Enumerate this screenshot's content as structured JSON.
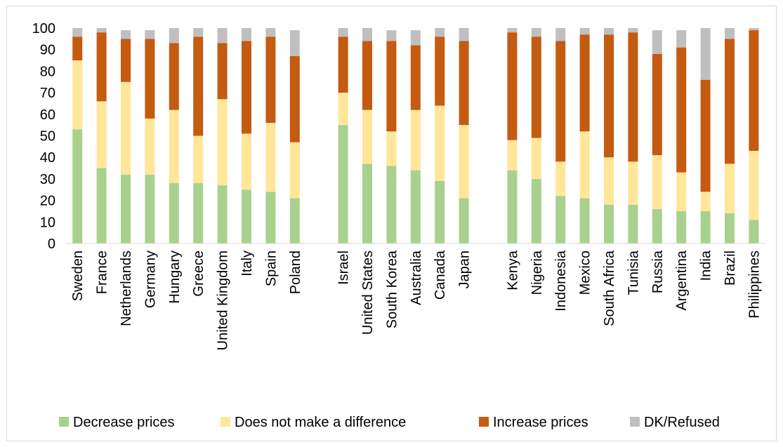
{
  "chart_data": {
    "type": "bar",
    "stacked": true,
    "ylim": [
      0,
      100
    ],
    "yticks": [
      0,
      10,
      20,
      30,
      40,
      50,
      60,
      70,
      80,
      90,
      100
    ],
    "grid": false,
    "legend_position": "bottom",
    "groups": [
      [
        "Sweden",
        "France",
        "Netherlands",
        "Germany",
        "Hungary",
        "Greece",
        "United Kingdom",
        "Italy",
        "Spain",
        "Poland"
      ],
      [
        "Israel",
        "United States",
        "South Korea",
        "Australia",
        "Canada",
        "Japan"
      ],
      [
        "Kenya",
        "Nigeria",
        "Indonesia",
        "Mexico",
        "South Africa",
        "Tunisia",
        "Russia",
        "Argentina",
        "India",
        "Brazil",
        "Philippines"
      ]
    ],
    "categories": [
      "Sweden",
      "France",
      "Netherlands",
      "Germany",
      "Hungary",
      "Greece",
      "United Kingdom",
      "Italy",
      "Spain",
      "Poland",
      "Israel",
      "United States",
      "South Korea",
      "Australia",
      "Canada",
      "Japan",
      "Kenya",
      "Nigeria",
      "Indonesia",
      "Mexico",
      "South Africa",
      "Tunisia",
      "Russia",
      "Argentina",
      "India",
      "Brazil",
      "Philippines"
    ],
    "series": [
      {
        "name": "Decrease prices",
        "color": "#a9d18e",
        "values": [
          53,
          35,
          32,
          32,
          28,
          28,
          27,
          25,
          24,
          21,
          55,
          37,
          36,
          34,
          29,
          21,
          34,
          30,
          22,
          21,
          18,
          18,
          16,
          15,
          15,
          14,
          11
        ]
      },
      {
        "name": "Does not make a difference",
        "color": "#ffe699",
        "values": [
          32,
          31,
          43,
          26,
          34,
          22,
          40,
          26,
          32,
          26,
          15,
          25,
          16,
          28,
          35,
          34,
          14,
          19,
          16,
          31,
          22,
          20,
          25,
          18,
          9,
          23,
          32
        ]
      },
      {
        "name": "Increase prices",
        "color": "#c55a11",
        "values": [
          11,
          32,
          20,
          37,
          31,
          46,
          26,
          43,
          40,
          40,
          26,
          32,
          42,
          30,
          32,
          39,
          50,
          47,
          56,
          45,
          57,
          60,
          47,
          58,
          52,
          58,
          56
        ]
      },
      {
        "name": "DK/Refused",
        "color": "#bfbfbf",
        "values": [
          4,
          2,
          4,
          4,
          7,
          4,
          7,
          6,
          4,
          12,
          4,
          6,
          5,
          7,
          4,
          6,
          2,
          4,
          6,
          3,
          3,
          2,
          11,
          8,
          24,
          5,
          1
        ]
      }
    ]
  }
}
